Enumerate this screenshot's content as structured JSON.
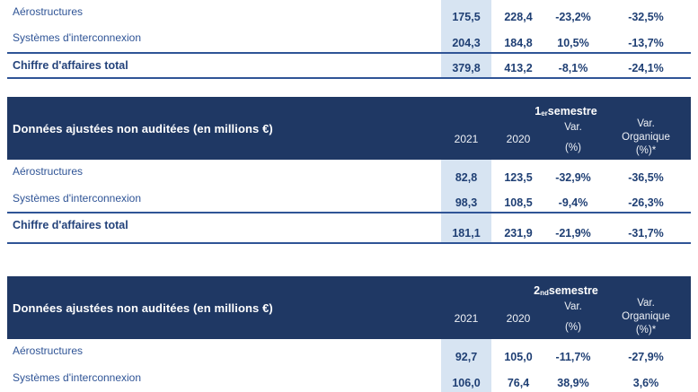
{
  "document": {
    "language": "fr",
    "description_row_header": "Données ajustées non auditées (en millions €)"
  },
  "colors": {
    "header_background": "#1f3864",
    "header_text": "#ffffff",
    "highlight_column": "#d7e4f2",
    "label_text": "#2f5496",
    "value_text": "#1f3f74",
    "rule": "#2f5496"
  },
  "columns": {
    "year1": "2021",
    "year2": "2020",
    "var_line1": "Var.",
    "var_line2": "(%)",
    "org_line1": "Var.",
    "org_line2": "Organique",
    "org_line3": "(%)*"
  },
  "tables": [
    {
      "name": "full-year-partial",
      "rows": [
        {
          "label": "Aérostructures",
          "values": [
            "175,5",
            "228,4",
            "-23,2%",
            "-32,5%"
          ]
        },
        {
          "label": "Systèmes d'interconnexion",
          "values": [
            "204,3",
            "184,8",
            "10,5%",
            "-13,7%"
          ]
        },
        {
          "label": "Chiffre d'affaires total",
          "values": [
            "379,8",
            "413,2",
            "-8,1%",
            "-24,1%"
          ]
        }
      ]
    },
    {
      "name": "premier-semestre",
      "header": {
        "title": "Données ajustées non auditées (en millions €)",
        "period_num": "1",
        "period_sup": "er",
        "period_word": " semestre"
      },
      "rows": [
        {
          "label": "Aérostructures",
          "values": [
            "82,8",
            "123,5",
            "-32,9%",
            "-36,5%"
          ]
        },
        {
          "label": "Systèmes d'interconnexion",
          "values": [
            "98,3",
            "108,5",
            "-9,4%",
            "-26,3%"
          ]
        },
        {
          "label": "Chiffre d'affaires total",
          "values": [
            "181,1",
            "231,9",
            "-21,9%",
            "-31,7%"
          ]
        }
      ]
    },
    {
      "name": "second-semestre",
      "header": {
        "title": "Données ajustées non auditées (en millions €)",
        "period_num": "2",
        "period_sup": "nd",
        "period_word": " semestre"
      },
      "rows": [
        {
          "label": "Aérostructures",
          "values": [
            "92,7",
            "105,0",
            "-11,7%",
            "-27,9%"
          ]
        },
        {
          "label": "Systèmes d'interconnexion",
          "values": [
            "106,0",
            "76,4",
            "38,9%",
            "3,6%"
          ]
        }
      ]
    }
  ]
}
